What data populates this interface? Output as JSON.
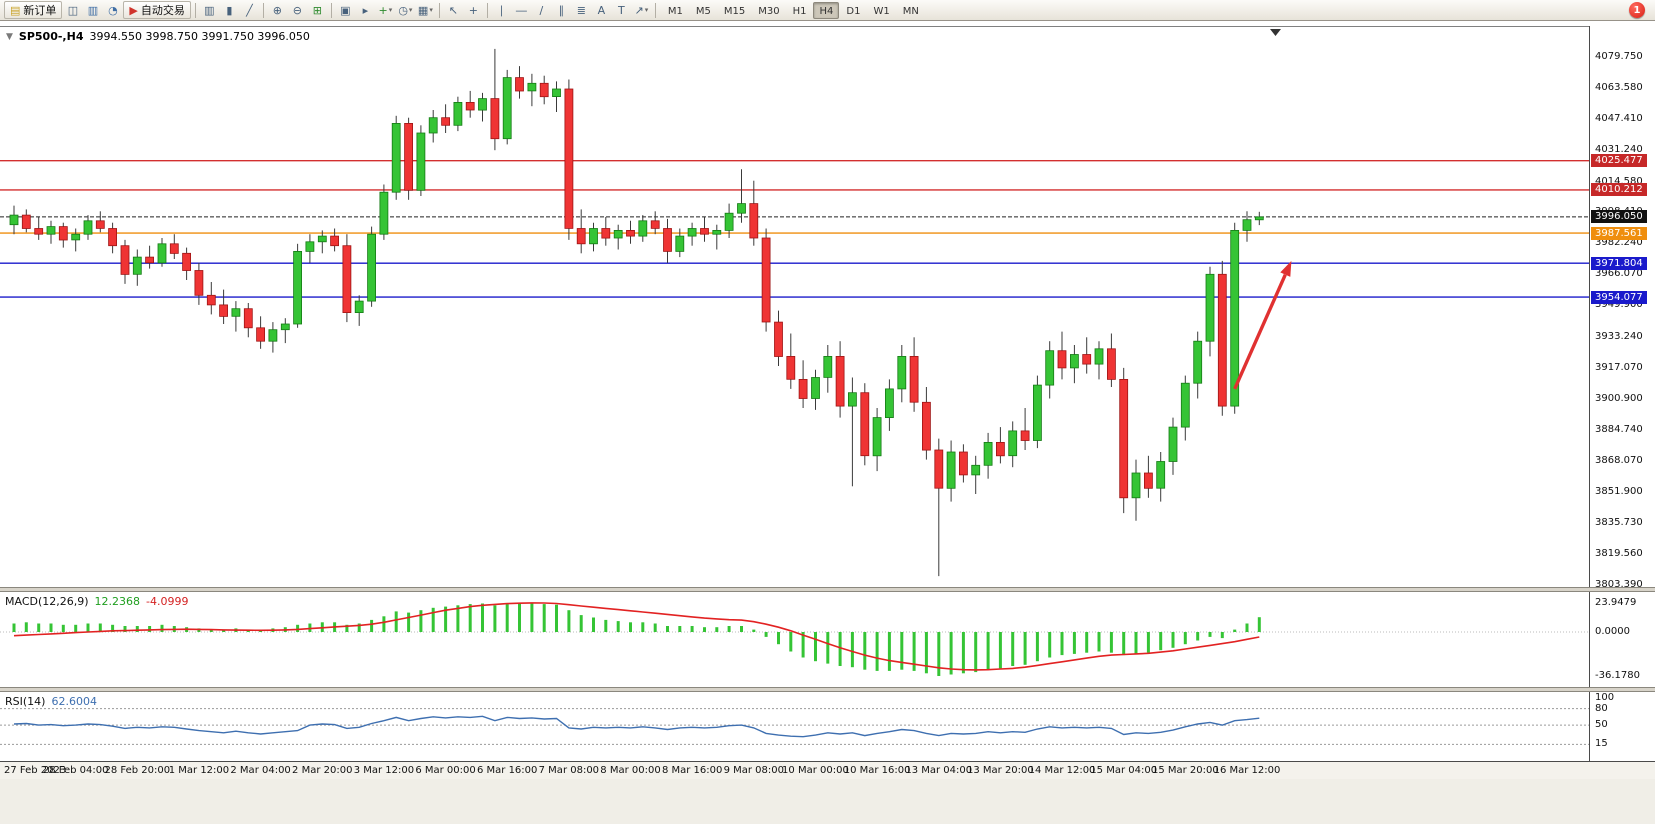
{
  "toolbar": {
    "items": [
      {
        "type": "button",
        "name": "new-order-button",
        "label": "新订单",
        "glyph": "▤",
        "glyph_color": "#c9a227"
      },
      {
        "type": "icon",
        "name": "charts-window-icon",
        "glyph": "◫"
      },
      {
        "type": "icon",
        "name": "profiles-icon",
        "glyph": "▥",
        "glyph_color": "#3f6ea5"
      },
      {
        "type": "icon",
        "name": "market-watch-icon",
        "glyph": "◔",
        "glyph_color": "#3f6ea5"
      },
      {
        "type": "button",
        "name": "autotrade-button",
        "label": "自动交易",
        "glyph": "▶",
        "glyph_color": "#d0342c"
      },
      {
        "type": "sep"
      },
      {
        "type": "icon",
        "name": "bar-chart-icon",
        "glyph": "▥"
      },
      {
        "type": "icon",
        "name": "candlestick-chart-icon",
        "glyph": "▮"
      },
      {
        "type": "icon",
        "name": "line-chart-icon",
        "glyph": "╱"
      },
      {
        "type": "sep"
      },
      {
        "type": "icon",
        "name": "zoom-in-icon",
        "glyph": "⊕"
      },
      {
        "type": "icon",
        "name": "zoom-out-icon",
        "glyph": "⊖"
      },
      {
        "type": "icon",
        "name": "tile-windows-icon",
        "glyph": "⊞",
        "glyph_color": "#2e8b2e"
      },
      {
        "type": "sep"
      },
      {
        "type": "icon",
        "name": "auto-arrange-icon",
        "glyph": "▣"
      },
      {
        "type": "icon",
        "name": "chart-shift-icon",
        "glyph": "▸"
      },
      {
        "type": "icon",
        "name": "new-chart-icon",
        "glyph": "+",
        "glyph_color": "#2e8b2e",
        "dropdown": true
      },
      {
        "type": "icon",
        "name": "periods-icon",
        "glyph": "◷",
        "dropdown": true
      },
      {
        "type": "icon",
        "name": "templates-icon",
        "glyph": "▦",
        "dropdown": true
      },
      {
        "type": "sep"
      },
      {
        "type": "icon",
        "name": "cursor-icon",
        "glyph": "↖"
      },
      {
        "type": "icon",
        "name": "crosshair-icon",
        "glyph": "+"
      },
      {
        "type": "sep"
      },
      {
        "type": "icon",
        "name": "vertical-line-icon",
        "glyph": "∣"
      },
      {
        "type": "icon",
        "name": "horizontal-line-icon",
        "glyph": "―"
      },
      {
        "type": "icon",
        "name": "trendline-icon",
        "glyph": "∕"
      },
      {
        "type": "icon",
        "name": "channel-icon",
        "glyph": "∥"
      },
      {
        "type": "icon",
        "name": "fibonacci-icon",
        "glyph": "≣"
      },
      {
        "type": "icon",
        "name": "text-icon",
        "glyph": "A"
      },
      {
        "type": "icon",
        "name": "text-label-icon",
        "glyph": "T"
      },
      {
        "type": "icon",
        "name": "arrow-tool-icon",
        "glyph": "↗",
        "dropdown": true
      },
      {
        "type": "sep"
      }
    ],
    "timeframes": [
      "M1",
      "M5",
      "M15",
      "M30",
      "H1",
      "H4",
      "D1",
      "W1",
      "MN"
    ],
    "active_timeframe": "H4",
    "notification_count": "1"
  },
  "chart": {
    "title": "SP500-,H4",
    "ohlc": "3994.550 3998.750 3991.750 3996.050",
    "indicators": {
      "macd": {
        "name": "MACD(12,26,9)",
        "main_value": "12.2368",
        "signal_value": "-4.0999",
        "ticks": [
          "23.9479",
          "0.0000",
          "-36.1780"
        ],
        "tick_values": [
          23.9479,
          0,
          -36.178
        ]
      },
      "rsi": {
        "name": "RSI(14)",
        "value": "62.6004",
        "ticks": [
          "100",
          "80",
          "50",
          "15"
        ],
        "tick_values": [
          100,
          80,
          50,
          15
        ],
        "levels": [
          80,
          50,
          15
        ]
      }
    },
    "price_axis": {
      "labels": [
        "4079.750",
        "4063.580",
        "4047.410",
        "4031.240",
        "4014.580",
        "3998.410",
        "3982.240",
        "3966.070",
        "3949.900",
        "3933.240",
        "3917.070",
        "3900.900",
        "3884.740",
        "3868.070",
        "3851.900",
        "3835.730",
        "3819.560",
        "3803.390"
      ],
      "values": [
        4079.75,
        4063.58,
        4047.41,
        4031.24,
        4014.58,
        3998.41,
        3982.24,
        3966.07,
        3949.9,
        3933.24,
        3917.07,
        3900.9,
        3884.74,
        3868.07,
        3851.9,
        3835.73,
        3819.56,
        3803.39
      ]
    },
    "levels": [
      {
        "price": 4025.477,
        "label": "4025.477",
        "line_color": "#d32f2f",
        "badge_color": "#c62828"
      },
      {
        "price": 4010.212,
        "label": "4010.212",
        "line_color": "#d32f2f",
        "badge_color": "#c62828"
      },
      {
        "price": 3987.561,
        "label": "3987.561",
        "line_color": "#ef8e0e",
        "badge_color": "#ef8e0e"
      },
      {
        "price": 3971.804,
        "label": "3971.804",
        "line_color": "#1a1acb",
        "badge_color": "#1a1acb"
      },
      {
        "price": 3954.077,
        "label": "3954.077",
        "line_color": "#1a1acb",
        "badge_color": "#1a1acb"
      }
    ],
    "current_price": {
      "price": 3996.05,
      "label": "3996.050",
      "badge_color": "#111111"
    }
  },
  "chart_data": {
    "type": "candlestick",
    "symbol": "SP500-",
    "period": "H4",
    "x_labels": [
      "27 Feb 2023",
      "28 Feb 04:00",
      "28 Feb 20:00",
      "1 Mar 12:00",
      "2 Mar 04:00",
      "2 Mar 20:00",
      "3 Mar 12:00",
      "6 Mar 00:00",
      "6 Mar 16:00",
      "7 Mar 08:00",
      "8 Mar 00:00",
      "8 Mar 16:00",
      "9 Mar 08:00",
      "10 Mar 00:00",
      "10 Mar 16:00",
      "13 Mar 04:00",
      "13 Mar 20:00",
      "14 Mar 12:00",
      "15 Mar 04:00",
      "15 Mar 20:00",
      "16 Mar 12:00"
    ],
    "bars_per_label": 5,
    "price_range": [
      3802.3,
      4096
    ],
    "candles": [
      [
        3992,
        4002,
        3987,
        3997
      ],
      [
        3997,
        4000,
        3988,
        3990
      ],
      [
        3990,
        3996,
        3984,
        3987
      ],
      [
        3987,
        3994,
        3982,
        3991
      ],
      [
        3991,
        3993,
        3980,
        3984
      ],
      [
        3984,
        3990,
        3978,
        3987
      ],
      [
        3987,
        3997,
        3984,
        3994
      ],
      [
        3994,
        3999,
        3988,
        3990
      ],
      [
        3990,
        3993,
        3977,
        3981
      ],
      [
        3981,
        3984,
        3961,
        3966
      ],
      [
        3966,
        3979,
        3960,
        3975
      ],
      [
        3975,
        3981,
        3969,
        3972
      ],
      [
        3972,
        3985,
        3970,
        3982
      ],
      [
        3982,
        3987,
        3974,
        3977
      ],
      [
        3977,
        3980,
        3963,
        3968
      ],
      [
        3968,
        3972,
        3950,
        3955
      ],
      [
        3955,
        3962,
        3945,
        3950
      ],
      [
        3950,
        3958,
        3940,
        3944
      ],
      [
        3944,
        3952,
        3936,
        3948
      ],
      [
        3948,
        3951,
        3933,
        3938
      ],
      [
        3938,
        3944,
        3927,
        3931
      ],
      [
        3931,
        3941,
        3925,
        3937
      ],
      [
        3937,
        3943,
        3930,
        3940
      ],
      [
        3940,
        3982,
        3938,
        3978
      ],
      [
        3978,
        3987,
        3972,
        3983
      ],
      [
        3983,
        3989,
        3977,
        3986
      ],
      [
        3986,
        3990,
        3978,
        3981
      ],
      [
        3981,
        3987,
        3941,
        3946
      ],
      [
        3946,
        3955,
        3939,
        3952
      ],
      [
        3952,
        3991,
        3949,
        3987
      ],
      [
        3987,
        4013,
        3984,
        4009
      ],
      [
        4009,
        4049,
        4005,
        4045
      ],
      [
        4045,
        4048,
        4005,
        4010
      ],
      [
        4010,
        4044,
        4007,
        4040
      ],
      [
        4040,
        4052,
        4035,
        4048
      ],
      [
        4048,
        4055,
        4040,
        4044
      ],
      [
        4044,
        4059,
        4041,
        4056
      ],
      [
        4056,
        4062,
        4048,
        4052
      ],
      [
        4052,
        4061,
        4046,
        4058
      ],
      [
        4058,
        4084,
        4031,
        4037
      ],
      [
        4037,
        4073,
        4034,
        4069
      ],
      [
        4069,
        4075,
        4058,
        4062
      ],
      [
        4062,
        4071,
        4054,
        4066
      ],
      [
        4066,
        4070,
        4055,
        4059
      ],
      [
        4059,
        4067,
        4051,
        4063
      ],
      [
        4063,
        4068,
        3984,
        3990
      ],
      [
        3990,
        4000,
        3977,
        3982
      ],
      [
        3982,
        3993,
        3978,
        3990
      ],
      [
        3990,
        3996,
        3981,
        3985
      ],
      [
        3985,
        3992,
        3979,
        3989
      ],
      [
        3989,
        3994,
        3982,
        3986
      ],
      [
        3986,
        3997,
        3983,
        3994
      ],
      [
        3994,
        3999,
        3987,
        3990
      ],
      [
        3990,
        3995,
        3972,
        3978
      ],
      [
        3978,
        3990,
        3975,
        3986
      ],
      [
        3986,
        3993,
        3981,
        3990
      ],
      [
        3990,
        3996,
        3983,
        3987
      ],
      [
        3987,
        3992,
        3979,
        3989
      ],
      [
        3989,
        4003,
        3985,
        3998
      ],
      [
        3998,
        4021,
        3993,
        4003
      ],
      [
        4003,
        4015,
        3981,
        3985
      ],
      [
        3985,
        3990,
        3936,
        3941
      ],
      [
        3941,
        3947,
        3918,
        3923
      ],
      [
        3923,
        3935,
        3906,
        3911
      ],
      [
        3911,
        3921,
        3896,
        3901
      ],
      [
        3901,
        3916,
        3895,
        3912
      ],
      [
        3912,
        3929,
        3904,
        3923
      ],
      [
        3923,
        3931,
        3891,
        3897
      ],
      [
        3897,
        3912,
        3855,
        3904
      ],
      [
        3904,
        3909,
        3866,
        3871
      ],
      [
        3871,
        3896,
        3863,
        3891
      ],
      [
        3891,
        3911,
        3884,
        3906
      ],
      [
        3906,
        3929,
        3899,
        3923
      ],
      [
        3923,
        3933,
        3894,
        3899
      ],
      [
        3899,
        3907,
        3869,
        3874
      ],
      [
        3874,
        3880,
        3808,
        3854
      ],
      [
        3854,
        3879,
        3847,
        3873
      ],
      [
        3873,
        3877,
        3857,
        3861
      ],
      [
        3861,
        3871,
        3851,
        3866
      ],
      [
        3866,
        3883,
        3859,
        3878
      ],
      [
        3878,
        3886,
        3867,
        3871
      ],
      [
        3871,
        3889,
        3865,
        3884
      ],
      [
        3884,
        3896,
        3874,
        3879
      ],
      [
        3879,
        3913,
        3875,
        3908
      ],
      [
        3908,
        3931,
        3901,
        3926
      ],
      [
        3926,
        3936,
        3911,
        3917
      ],
      [
        3917,
        3929,
        3909,
        3924
      ],
      [
        3924,
        3933,
        3914,
        3919
      ],
      [
        3919,
        3931,
        3911,
        3927
      ],
      [
        3927,
        3935,
        3907,
        3911
      ],
      [
        3911,
        3917,
        3841,
        3849
      ],
      [
        3849,
        3869,
        3837,
        3862
      ],
      [
        3862,
        3871,
        3849,
        3854
      ],
      [
        3854,
        3873,
        3847,
        3868
      ],
      [
        3868,
        3891,
        3861,
        3886
      ],
      [
        3886,
        3913,
        3879,
        3909
      ],
      [
        3909,
        3936,
        3901,
        3931
      ],
      [
        3931,
        3970,
        3923,
        3966
      ],
      [
        3966,
        3973,
        3892,
        3897
      ],
      [
        3897,
        3993,
        3893,
        3989
      ],
      [
        3989,
        3999,
        3983,
        3994.6
      ],
      [
        3994.55,
        3998.75,
        3991.75,
        3996.05
      ]
    ],
    "hlines": [
      {
        "price": 4025.477,
        "color": "#d32f2f"
      },
      {
        "price": 4010.212,
        "color": "#d32f2f"
      },
      {
        "price": 3987.561,
        "color": "#ef8e0e"
      },
      {
        "price": 3971.804,
        "color": "#1a1acb"
      },
      {
        "price": 3954.077,
        "color": "#1a1acb"
      }
    ],
    "current_price": 3996.05,
    "macd": {
      "range": [
        -45.3,
        33
      ],
      "histogram": [
        7,
        8,
        7,
        7,
        6,
        6,
        7,
        7,
        6,
        5,
        5,
        5,
        6,
        5,
        4,
        3,
        2,
        2,
        3,
        2,
        2,
        3,
        4,
        6,
        7,
        8,
        8,
        6,
        7,
        10,
        13,
        17,
        16,
        18,
        20,
        21,
        22,
        23,
        23.5,
        22,
        23,
        23.9,
        23.5,
        23,
        22.5,
        18,
        14,
        12,
        10,
        9,
        8,
        8,
        7,
        5,
        5,
        5,
        4,
        4,
        5,
        5,
        2,
        -4,
        -10,
        -16,
        -21,
        -24,
        -26,
        -28,
        -29,
        -31,
        -32,
        -32,
        -31,
        -32,
        -34,
        -36.2,
        -35,
        -34,
        -33,
        -31,
        -30,
        -28,
        -27,
        -24,
        -21,
        -19,
        -18,
        -17,
        -16,
        -17,
        -19,
        -18,
        -17,
        -15,
        -13,
        -10,
        -7,
        -4,
        -5,
        2,
        7,
        12.24
      ],
      "signal": [
        -3,
        -2.5,
        -2,
        -1.5,
        -1,
        -0.5,
        0,
        0.5,
        1,
        1.2,
        1.5,
        1.8,
        2,
        2.2,
        2.3,
        2.2,
        2,
        1.8,
        1.6,
        1.5,
        1.4,
        1.5,
        1.8,
        2.2,
        2.8,
        3.5,
        4.2,
        4.8,
        5.5,
        6.5,
        8,
        10,
        12,
        14,
        16,
        18,
        19.5,
        21,
        22,
        22.8,
        23.4,
        23.8,
        24,
        23.9,
        23.5,
        22.5,
        21.5,
        20.5,
        19.5,
        18.5,
        17.5,
        16.5,
        15.5,
        14.5,
        13.5,
        12.5,
        11.5,
        10.8,
        10.2,
        9.8,
        8.5,
        6.5,
        4,
        1,
        -2.5,
        -6,
        -9.5,
        -13,
        -16,
        -19,
        -21.5,
        -23.5,
        -25,
        -26.5,
        -28,
        -29.5,
        -30.5,
        -31,
        -31.2,
        -31,
        -30.5,
        -30,
        -29,
        -27.5,
        -26,
        -24.5,
        -23,
        -21.5,
        -20,
        -19,
        -18.5,
        -18,
        -17.5,
        -16.5,
        -15.5,
        -14,
        -12.5,
        -11,
        -9.5,
        -8,
        -6,
        -4.1
      ]
    },
    "rsi": {
      "range": [
        -15,
        110
      ],
      "values": [
        52,
        53,
        50,
        51,
        49,
        50,
        52,
        51,
        48,
        44,
        46,
        45,
        47,
        46,
        43,
        40,
        38,
        36,
        39,
        36,
        34,
        36,
        38,
        40,
        50,
        52,
        51,
        44,
        46,
        53,
        58,
        64,
        58,
        62,
        65,
        63,
        65,
        64,
        66,
        58,
        64,
        62,
        63,
        61,
        62,
        45,
        43,
        46,
        45,
        46,
        45,
        47,
        45,
        42,
        45,
        46,
        45,
        46,
        49,
        50,
        45,
        35,
        32,
        30,
        29,
        32,
        36,
        34,
        36,
        31,
        35,
        38,
        42,
        40,
        35,
        31,
        35,
        34,
        35,
        38,
        36,
        38,
        37,
        43,
        47,
        45,
        46,
        45,
        46,
        44,
        33,
        36,
        35,
        37,
        41,
        47,
        52,
        55,
        50,
        58,
        60,
        62.6
      ]
    },
    "annotations": [
      {
        "type": "arrow-up",
        "color": "#e03131",
        "from_bar": 99,
        "from_price": 3906,
        "to_bar": 103.6,
        "to_price": 3973
      }
    ]
  }
}
